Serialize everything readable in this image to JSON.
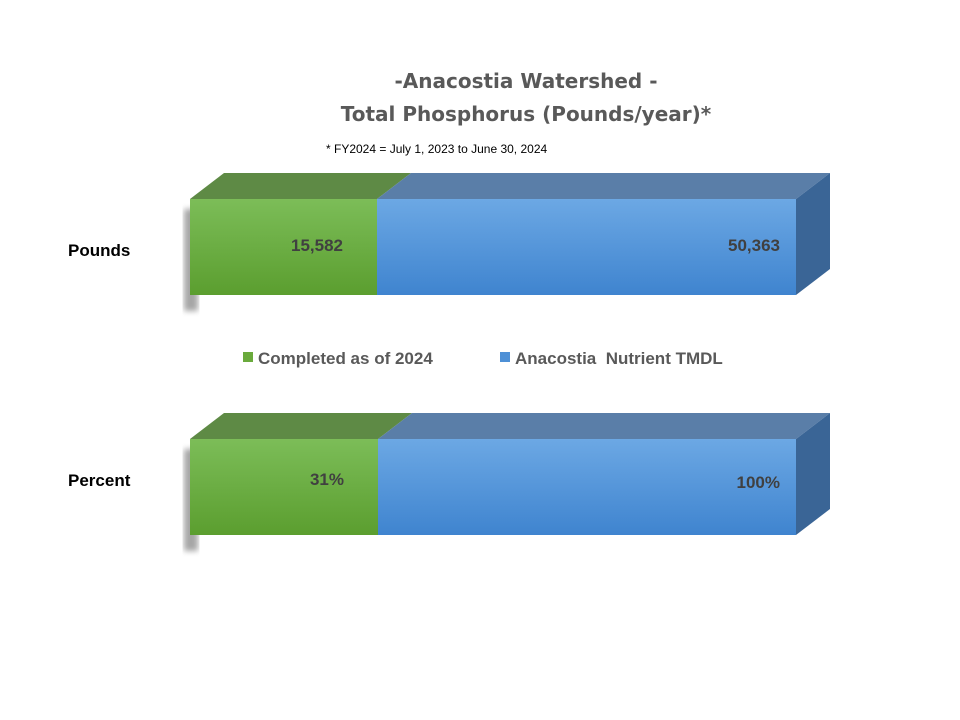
{
  "chart_data": {
    "type": "bar",
    "orientation": "horizontal",
    "three_d": true,
    "title_line1": "-Anacostia Watershed -",
    "title_line2": "Total Phosphorus (Pounds/year)*",
    "footnote": "* FY2024 = July 1, 2023 to June 30, 2024",
    "categories": [
      "Pounds",
      "Percent"
    ],
    "series": [
      {
        "name": "Completed as of 2024",
        "color": "#6aaa3c",
        "values": [
          15582,
          31
        ],
        "labels": [
          "15,582",
          "31%"
        ]
      },
      {
        "name": "Anacostia  Nutrient TMDL",
        "color": "#4e90d6",
        "values": [
          50363,
          100
        ],
        "labels": [
          "50,363",
          "100%"
        ]
      }
    ],
    "legend_position": "between-bars",
    "grid": false
  }
}
